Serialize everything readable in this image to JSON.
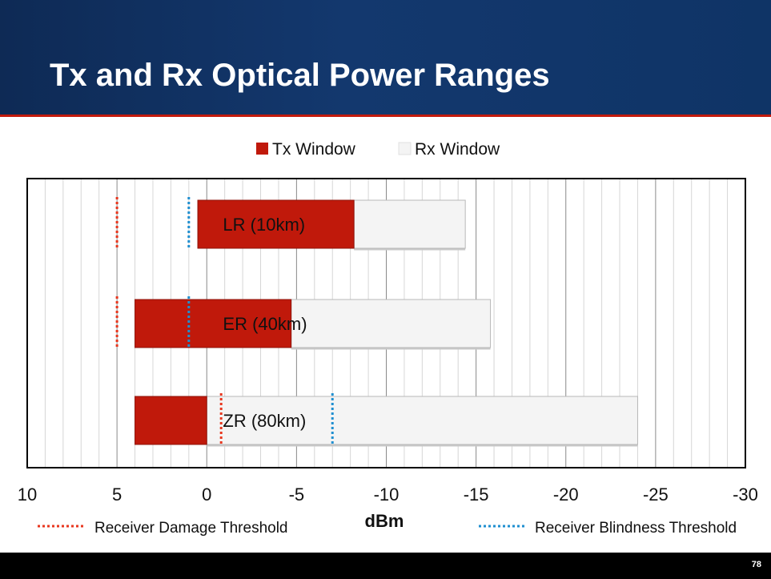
{
  "slide": {
    "title": "Tx and Rx Optical Power Ranges",
    "page_number": "78"
  },
  "colors": {
    "header": "#13386e",
    "accent_red": "#c21a0c",
    "tx": "#c0190b",
    "rx": "#f4f4f4",
    "damage": "#e8371f",
    "blindness": "#1f8fd0"
  },
  "chart_data": {
    "type": "bar",
    "orientation": "horizontal",
    "stacked": true,
    "xlabel": "dBm",
    "xlim": [
      10,
      -30
    ],
    "xticks": [
      10,
      5,
      0,
      -5,
      -10,
      -15,
      -20,
      -25,
      -30
    ],
    "xtick_labels": [
      "10",
      "5",
      "0",
      "-5",
      "-10",
      "-15",
      "-20",
      "-25",
      "-30"
    ],
    "categories": [
      "LR (10km)",
      "ER (40km)",
      "ZR (80km)"
    ],
    "series": [
      {
        "name": "Tx Window",
        "color": "#c0190b",
        "ranges": [
          [
            0.5,
            -8.2
          ],
          [
            4,
            -4.7
          ],
          [
            4,
            0
          ]
        ]
      },
      {
        "name": "Rx Window",
        "color": "#f4f4f4",
        "ranges": [
          [
            -8.2,
            -14.4
          ],
          [
            -4.7,
            -15.8
          ],
          [
            0,
            -24
          ]
        ]
      }
    ],
    "thresholds": [
      {
        "name": "Receiver Damage Threshold",
        "color": "#e8371f",
        "values": [
          5,
          5,
          -0.8
        ]
      },
      {
        "name": "Receiver Blindness Threshold",
        "color": "#1f8fd0",
        "values": [
          1,
          1,
          -7
        ]
      }
    ],
    "legend_position": "top",
    "grid": true
  }
}
